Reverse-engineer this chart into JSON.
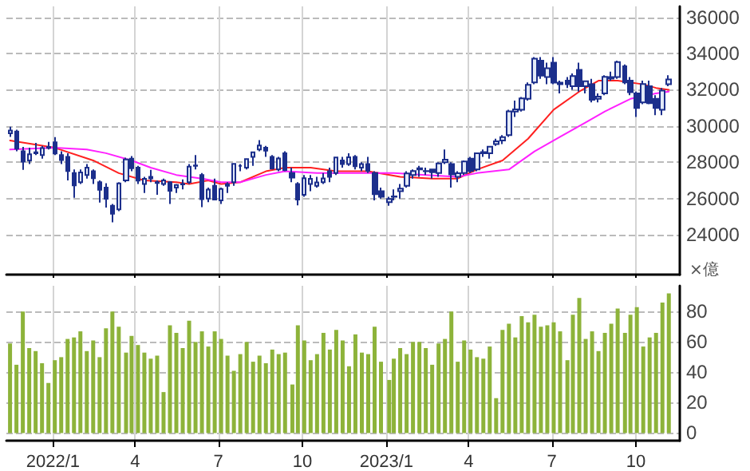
{
  "chart_data": [
    {
      "type": "candlestick",
      "color": "#1c2f8c",
      "x": [
        "2021-11-15",
        "2021-11-22",
        "2021-11-29",
        "2021-12-06",
        "2021-12-13",
        "2021-12-20",
        "2021-12-27",
        "2022-01-03",
        "2022-01-10",
        "2022-01-17",
        "2022-01-24",
        "2022-01-31",
        "2022-02-07",
        "2022-02-14",
        "2022-02-21",
        "2022-02-28",
        "2022-03-07",
        "2022-03-14",
        "2022-03-22",
        "2022-03-28",
        "2022-04-04",
        "2022-04-11",
        "2022-04-18",
        "2022-04-25",
        "2022-05-02",
        "2022-05-09",
        "2022-05-16",
        "2022-05-23",
        "2022-05-30",
        "2022-06-06",
        "2022-06-13",
        "2022-06-20",
        "2022-06-27",
        "2022-07-04",
        "2022-07-11",
        "2022-07-18",
        "2022-07-25",
        "2022-08-01",
        "2022-08-08",
        "2022-08-15",
        "2022-08-22",
        "2022-08-29",
        "2022-09-05",
        "2022-09-12",
        "2022-09-20",
        "2022-09-26",
        "2022-10-03",
        "2022-10-10",
        "2022-10-17",
        "2022-10-24",
        "2022-10-31",
        "2022-11-07",
        "2022-11-14",
        "2022-11-21",
        "2022-11-28",
        "2022-12-05",
        "2022-12-12",
        "2022-12-19",
        "2022-12-26",
        "2023-01-04",
        "2023-01-09",
        "2023-01-16",
        "2023-01-23",
        "2023-01-30",
        "2023-02-06",
        "2023-02-13",
        "2023-02-20",
        "2023-02-27",
        "2023-03-06",
        "2023-03-13",
        "2023-03-20",
        "2023-03-27",
        "2023-04-03",
        "2023-04-10",
        "2023-04-17",
        "2023-04-24",
        "2023-05-01",
        "2023-05-08",
        "2023-05-15",
        "2023-05-22",
        "2023-05-29",
        "2023-06-05",
        "2023-06-12",
        "2023-06-19",
        "2023-06-26",
        "2023-07-03",
        "2023-07-10",
        "2023-07-18",
        "2023-07-24",
        "2023-07-31",
        "2023-08-07",
        "2023-08-14",
        "2023-08-21",
        "2023-08-28",
        "2023-09-04",
        "2023-09-11",
        "2023-09-19",
        "2023-09-25",
        "2023-10-02",
        "2023-10-09",
        "2023-10-16",
        "2023-10-23",
        "2023-10-30",
        "2023-11-06"
      ],
      "ohlc": [
        [
          29600,
          29960,
          29400,
          29750
        ],
        [
          29700,
          29800,
          28600,
          28750
        ],
        [
          28600,
          28850,
          27580,
          28030
        ],
        [
          28100,
          28800,
          27900,
          28440
        ],
        [
          28500,
          29070,
          28400,
          28550
        ],
        [
          28400,
          28900,
          28200,
          28780
        ],
        [
          28850,
          29120,
          28700,
          28790
        ],
        [
          29100,
          29390,
          28400,
          28480
        ],
        [
          28400,
          28600,
          27900,
          28120
        ],
        [
          28300,
          28500,
          27000,
          27520
        ],
        [
          27400,
          27600,
          26040,
          26720
        ],
        [
          26900,
          27600,
          26800,
          27440
        ],
        [
          27300,
          27900,
          27100,
          27700
        ],
        [
          27500,
          27600,
          26800,
          27120
        ],
        [
          26900,
          27000,
          25770,
          26480
        ],
        [
          26600,
          26840,
          25500,
          25990
        ],
        [
          25600,
          25700,
          24680,
          25160
        ],
        [
          25400,
          26900,
          25300,
          26830
        ],
        [
          27000,
          28250,
          26900,
          28150
        ],
        [
          28200,
          28340,
          27500,
          27670
        ],
        [
          27700,
          27800,
          26800,
          26990
        ],
        [
          26800,
          27200,
          26300,
          27090
        ],
        [
          27200,
          27580,
          26900,
          27110
        ],
        [
          26900,
          27000,
          26200,
          26850
        ],
        [
          26800,
          27100,
          26700,
          27000
        ],
        [
          26900,
          26950,
          25700,
          26430
        ],
        [
          26600,
          26800,
          26300,
          26740
        ],
        [
          26800,
          27050,
          26500,
          26780
        ],
        [
          26900,
          27900,
          26800,
          27760
        ],
        [
          27800,
          28400,
          27600,
          27820
        ],
        [
          27300,
          27400,
          25520,
          25960
        ],
        [
          26000,
          26600,
          25800,
          26490
        ],
        [
          26700,
          27100,
          25900,
          25940
        ],
        [
          25900,
          26600,
          25700,
          26520
        ],
        [
          26700,
          26900,
          26300,
          26790
        ],
        [
          26900,
          27950,
          26700,
          27910
        ],
        [
          27800,
          27900,
          27500,
          27800
        ],
        [
          27700,
          28200,
          27600,
          28180
        ],
        [
          28300,
          28550,
          27800,
          28550
        ],
        [
          28700,
          29220,
          28600,
          28930
        ],
        [
          28800,
          28900,
          28300,
          28640
        ],
        [
          28300,
          28400,
          27600,
          27650
        ],
        [
          27600,
          28300,
          27500,
          28210
        ],
        [
          28500,
          28600,
          27500,
          27570
        ],
        [
          27400,
          27700,
          26900,
          27150
        ],
        [
          26800,
          26900,
          25620,
          25940
        ],
        [
          26200,
          27300,
          26100,
          27120
        ],
        [
          26800,
          27300,
          26400,
          27090
        ],
        [
          26700,
          27200,
          26600,
          26890
        ],
        [
          26900,
          27400,
          26800,
          27110
        ],
        [
          27500,
          27700,
          26900,
          27200
        ],
        [
          27400,
          28300,
          27300,
          28260
        ],
        [
          28100,
          28300,
          27700,
          27900
        ],
        [
          27900,
          28500,
          27800,
          28280
        ],
        [
          28300,
          28400,
          27600,
          27780
        ],
        [
          27700,
          28000,
          27500,
          27900
        ],
        [
          27900,
          28300,
          27400,
          27530
        ],
        [
          27400,
          27500,
          25900,
          26240
        ],
        [
          26400,
          26600,
          26000,
          26090
        ],
        [
          25800,
          26100,
          25600,
          25970
        ],
        [
          26100,
          26500,
          25900,
          26120
        ],
        [
          26400,
          26800,
          26000,
          26550
        ],
        [
          26700,
          27500,
          26600,
          27380
        ],
        [
          27300,
          27600,
          27100,
          27510
        ],
        [
          27600,
          27800,
          27200,
          27670
        ],
        [
          27500,
          27700,
          27300,
          27510
        ],
        [
          27600,
          27650,
          27100,
          27450
        ],
        [
          27400,
          28000,
          27200,
          27930
        ],
        [
          28000,
          28700,
          27900,
          28140
        ],
        [
          27900,
          28000,
          26600,
          27330
        ],
        [
          27200,
          27500,
          26900,
          27390
        ],
        [
          27400,
          28100,
          27300,
          28040
        ],
        [
          28200,
          28300,
          27400,
          27520
        ],
        [
          27600,
          28500,
          27500,
          28490
        ],
        [
          28500,
          28700,
          28300,
          28560
        ],
        [
          28500,
          28900,
          28200,
          28860
        ],
        [
          29000,
          29300,
          28900,
          29160
        ],
        [
          29200,
          29500,
          29000,
          29390
        ],
        [
          29500,
          30900,
          29400,
          30810
        ],
        [
          30800,
          31400,
          30500,
          30920
        ],
        [
          30900,
          31600,
          30800,
          31520
        ],
        [
          31500,
          32400,
          31400,
          32270
        ],
        [
          32400,
          33800,
          32300,
          33710
        ],
        [
          33600,
          33800,
          32600,
          32780
        ],
        [
          32700,
          33500,
          32300,
          33190
        ],
        [
          33500,
          33800,
          32300,
          32390
        ],
        [
          32300,
          32500,
          31800,
          32390
        ],
        [
          32500,
          32700,
          32100,
          32300
        ],
        [
          32200,
          32900,
          32000,
          32760
        ],
        [
          33100,
          33500,
          31900,
          32190
        ],
        [
          32200,
          32500,
          31800,
          32470
        ],
        [
          32300,
          32600,
          31300,
          31450
        ],
        [
          31500,
          31800,
          31300,
          31620
        ],
        [
          31800,
          32800,
          31700,
          32710
        ],
        [
          32700,
          33000,
          32500,
          32610
        ],
        [
          32700,
          33600,
          32600,
          33530
        ],
        [
          33300,
          33400,
          32300,
          32400
        ],
        [
          32500,
          32700,
          31700,
          31860
        ],
        [
          31800,
          31900,
          30500,
          30990
        ],
        [
          31300,
          32500,
          31200,
          32320
        ],
        [
          32200,
          32500,
          31200,
          31260
        ],
        [
          31500,
          31700,
          30600,
          30990
        ],
        [
          30900,
          32100,
          30600,
          31950
        ],
        [
          32300,
          32800,
          32200,
          32570
        ]
      ],
      "series": [
        {
          "type": "line",
          "color": "#ff2020",
          "x": [
            "2021-11-15",
            "2022-01-03",
            "2022-02-14",
            "2022-03-14",
            "2022-04-11",
            "2022-05-16",
            "2022-05-30",
            "2022-06-20",
            "2022-07-04",
            "2022-07-25",
            "2022-08-22",
            "2022-09-12",
            "2022-10-10",
            "2022-11-07",
            "2022-12-12",
            "2023-01-16",
            "2023-02-20",
            "2023-03-20",
            "2023-04-10",
            "2023-05-08",
            "2023-06-05",
            "2023-07-03",
            "2023-07-31",
            "2023-08-21",
            "2023-09-11",
            "2023-10-09",
            "2023-10-23",
            "2023-11-06"
          ],
          "values": [
            29200,
            28800,
            28100,
            27400,
            27000,
            26900,
            26800,
            27000,
            26800,
            26900,
            27500,
            27700,
            27700,
            27500,
            27500,
            27200,
            27100,
            27100,
            27600,
            28100,
            29300,
            30900,
            31900,
            32500,
            32500,
            32300,
            32100,
            32000
          ]
        },
        {
          "type": "line",
          "color": "#ff20ff",
          "x": [
            "2021-11-15",
            "2022-01-03",
            "2022-02-07",
            "2022-02-28",
            "2022-03-28",
            "2022-04-18",
            "2022-05-16",
            "2022-06-13",
            "2022-07-04",
            "2022-07-25",
            "2022-08-22",
            "2022-09-12",
            "2022-10-17",
            "2022-11-21",
            "2023-01-09",
            "2023-02-13",
            "2023-03-20",
            "2023-04-10",
            "2023-05-15",
            "2023-06-12",
            "2023-07-10",
            "2023-08-07",
            "2023-08-28",
            "2023-09-25",
            "2023-10-23",
            "2023-11-06"
          ],
          "values": [
            28700,
            28800,
            28700,
            28500,
            28100,
            27700,
            27300,
            27100,
            26900,
            26900,
            27300,
            27500,
            27400,
            27400,
            27400,
            27300,
            27200,
            27400,
            27600,
            28600,
            29400,
            30200,
            30800,
            31500,
            31800,
            31900
          ]
        }
      ],
      "xlim": [
        "2021-11-11",
        "2023-11-18"
      ],
      "xticks": [
        {
          "value": "2022-01-01",
          "label": null
        },
        {
          "value": "2022-04-01",
          "label": null
        },
        {
          "value": "2022-07-01",
          "label": null
        },
        {
          "value": "2022-10-01",
          "label": null
        },
        {
          "value": "2023-01-01",
          "label": null
        },
        {
          "value": "2023-04-01",
          "label": null
        },
        {
          "value": "2023-07-01",
          "label": null
        },
        {
          "value": "2023-10-01",
          "label": null
        }
      ],
      "ylim": [
        21800,
        36600
      ],
      "yticks": [
        24000,
        26000,
        28000,
        30000,
        32000,
        34000,
        36000
      ],
      "grid": true,
      "tick_labels": "y"
    },
    {
      "type": "bar",
      "color": "#8db33a",
      "ylabel": "×億",
      "x": [
        "2021-11-15",
        "2021-11-22",
        "2021-11-29",
        "2021-12-06",
        "2021-12-13",
        "2021-12-20",
        "2021-12-27",
        "2022-01-03",
        "2022-01-10",
        "2022-01-17",
        "2022-01-24",
        "2022-01-31",
        "2022-02-07",
        "2022-02-14",
        "2022-02-21",
        "2022-02-28",
        "2022-03-07",
        "2022-03-14",
        "2022-03-22",
        "2022-03-28",
        "2022-04-04",
        "2022-04-11",
        "2022-04-18",
        "2022-04-25",
        "2022-05-02",
        "2022-05-09",
        "2022-05-16",
        "2022-05-23",
        "2022-05-30",
        "2022-06-06",
        "2022-06-13",
        "2022-06-20",
        "2022-06-27",
        "2022-07-04",
        "2022-07-11",
        "2022-07-18",
        "2022-07-25",
        "2022-08-01",
        "2022-08-08",
        "2022-08-15",
        "2022-08-22",
        "2022-08-29",
        "2022-09-05",
        "2022-09-12",
        "2022-09-20",
        "2022-09-26",
        "2022-10-03",
        "2022-10-10",
        "2022-10-17",
        "2022-10-24",
        "2022-10-31",
        "2022-11-07",
        "2022-11-14",
        "2022-11-21",
        "2022-11-28",
        "2022-12-05",
        "2022-12-12",
        "2022-12-19",
        "2022-12-26",
        "2023-01-04",
        "2023-01-09",
        "2023-01-16",
        "2023-01-23",
        "2023-01-30",
        "2023-02-06",
        "2023-02-13",
        "2023-02-20",
        "2023-02-27",
        "2023-03-06",
        "2023-03-13",
        "2023-03-20",
        "2023-03-27",
        "2023-04-03",
        "2023-04-10",
        "2023-04-17",
        "2023-04-24",
        "2023-05-01",
        "2023-05-08",
        "2023-05-15",
        "2023-05-22",
        "2023-05-29",
        "2023-06-05",
        "2023-06-12",
        "2023-06-19",
        "2023-06-26",
        "2023-07-03",
        "2023-07-10",
        "2023-07-18",
        "2023-07-24",
        "2023-07-31",
        "2023-08-07",
        "2023-08-14",
        "2023-08-21",
        "2023-08-28",
        "2023-09-04",
        "2023-09-11",
        "2023-09-19",
        "2023-09-25",
        "2023-10-02",
        "2023-10-09",
        "2023-10-16",
        "2023-10-23",
        "2023-10-30",
        "2023-11-06"
      ],
      "values": [
        59,
        45,
        80,
        56,
        54,
        46,
        33,
        48,
        50,
        62,
        63,
        67,
        54,
        61,
        50,
        69,
        80,
        70,
        53,
        64,
        58,
        53,
        49,
        51,
        27,
        71,
        66,
        56,
        74,
        60,
        67,
        57,
        67,
        62,
        51,
        41,
        52,
        60,
        47,
        51,
        46,
        55,
        52,
        53,
        32,
        71,
        61,
        48,
        52,
        66,
        55,
        68,
        61,
        44,
        65,
        53,
        52,
        70,
        47,
        35,
        49,
        56,
        52,
        60,
        60,
        56,
        45,
        59,
        62,
        80,
        47,
        61,
        55,
        50,
        49,
        57,
        23,
        68,
        72,
        63,
        77,
        73,
        78,
        70,
        71,
        73,
        67,
        48,
        78,
        89,
        62,
        67,
        54,
        66,
        72,
        82,
        66,
        78,
        83,
        57,
        63,
        66,
        86,
        92
      ],
      "xlim": [
        "2021-11-11",
        "2023-11-18"
      ],
      "xticks": [
        {
          "value": "2022-01-01",
          "label": "2022/1"
        },
        {
          "value": "2022-04-01",
          "label": "4"
        },
        {
          "value": "2022-07-01",
          "label": "7"
        },
        {
          "value": "2022-10-01",
          "label": "10"
        },
        {
          "value": "2023-01-01",
          "label": "2023/1"
        },
        {
          "value": "2023-04-01",
          "label": "4"
        },
        {
          "value": "2023-07-01",
          "label": "7"
        },
        {
          "value": "2023-10-01",
          "label": "10"
        }
      ],
      "ylim": [
        -5,
        97
      ],
      "yticks": [
        0,
        20,
        40,
        60,
        80
      ],
      "grid": true
    }
  ]
}
